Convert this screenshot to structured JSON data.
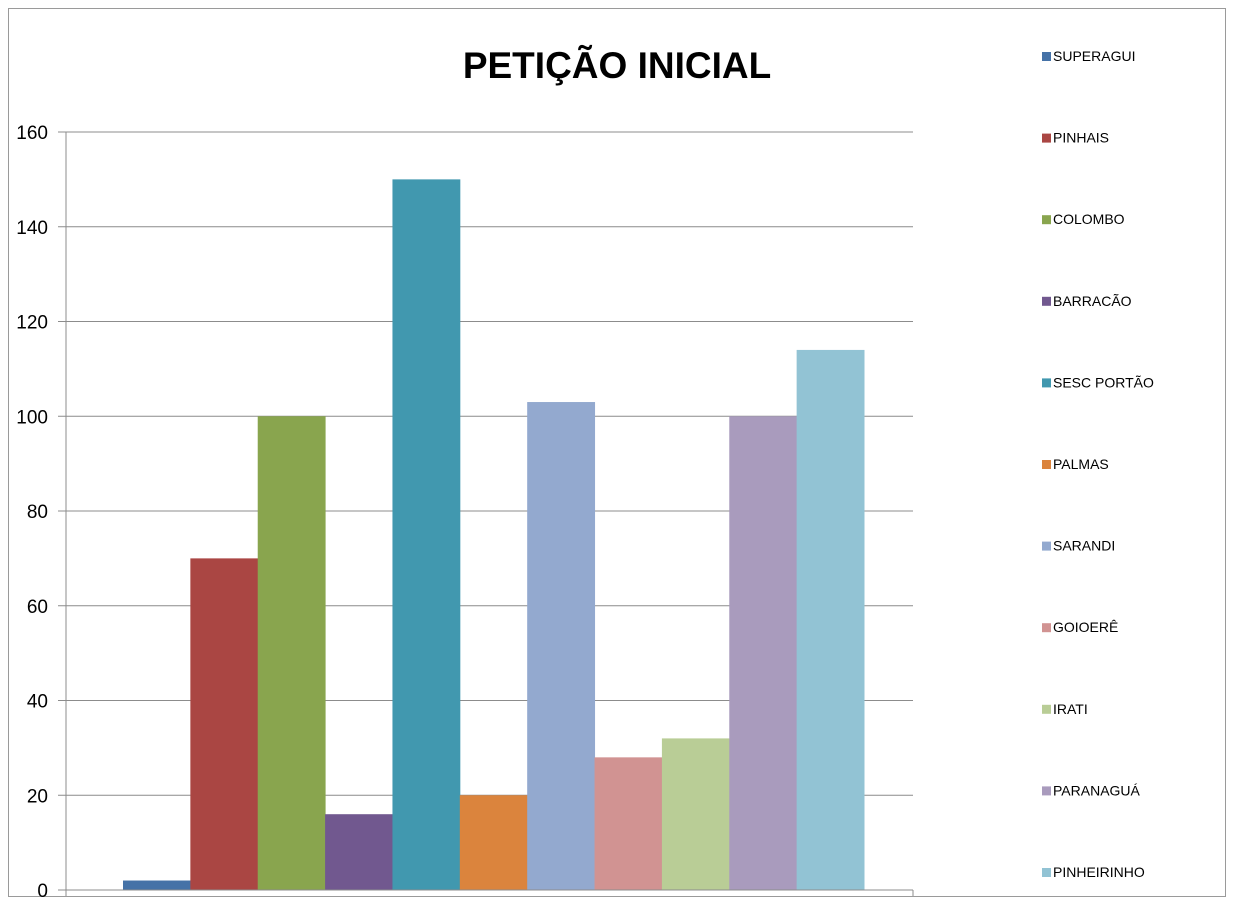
{
  "chart_data": {
    "type": "bar",
    "title": "PETIÇÃO INICIAL",
    "xlabel": "",
    "ylabel": "",
    "ylim": [
      0,
      160
    ],
    "yticks": [
      0,
      20,
      40,
      60,
      80,
      100,
      120,
      140,
      160
    ],
    "grid": true,
    "legend_position": "right",
    "series": [
      {
        "name": "SUPERAGUI",
        "values": [
          2
        ],
        "color": "#4572A7"
      },
      {
        "name": "PINHAIS",
        "values": [
          70
        ],
        "color": "#AA4643"
      },
      {
        "name": "COLOMBO",
        "values": [
          100
        ],
        "color": "#89A54E"
      },
      {
        "name": "BARRACÃO",
        "values": [
          16
        ],
        "color": "#71588F"
      },
      {
        "name": "SESC PORTÃO",
        "values": [
          150
        ],
        "color": "#4198AF"
      },
      {
        "name": "PALMAS",
        "values": [
          20
        ],
        "color": "#DB843D"
      },
      {
        "name": "SARANDI",
        "values": [
          103
        ],
        "color": "#93A9CF"
      },
      {
        "name": "GOIOERÊ",
        "values": [
          28
        ],
        "color": "#D19392"
      },
      {
        "name": "IRATI",
        "values": [
          32
        ],
        "color": "#B9CD96"
      },
      {
        "name": "PARANAGUÁ",
        "values": [
          100
        ],
        "color": "#A99BBD"
      },
      {
        "name": "PINHEIRINHO",
        "values": [
          114
        ],
        "color": "#92C3D4"
      }
    ]
  }
}
